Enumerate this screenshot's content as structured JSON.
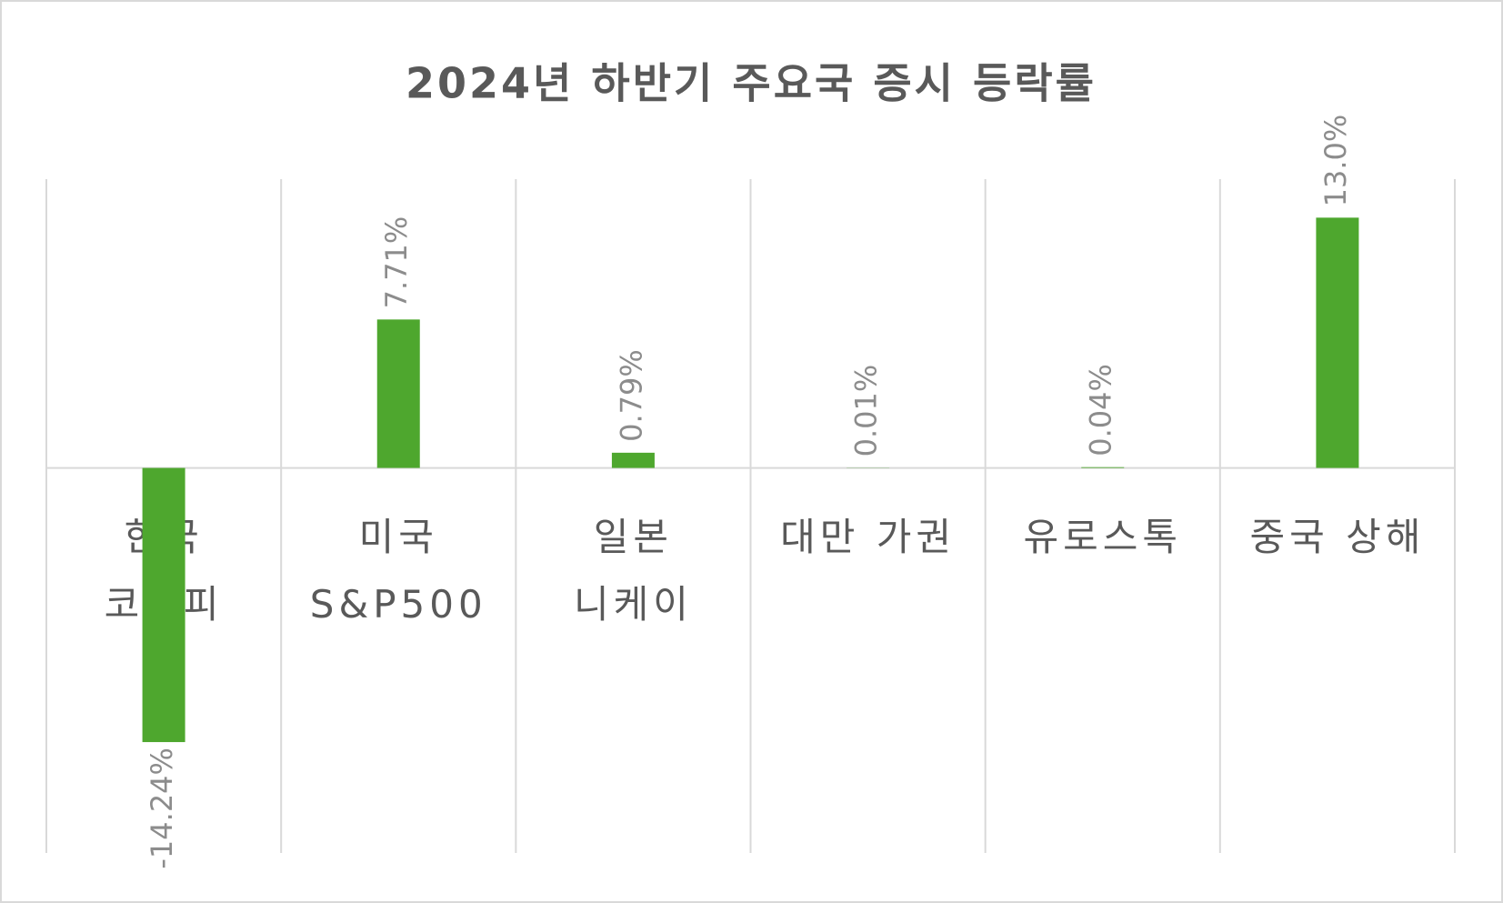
{
  "chart_data": {
    "type": "bar",
    "title": "2024년 하반기 주요국 증시 등락률",
    "categories": [
      "한국\n코스피",
      "미국\nS&P500",
      "일본\n니케이",
      "대만 가권",
      "유로스톡",
      "중국 상해"
    ],
    "values": [
      -14.24,
      7.71,
      0.79,
      0.01,
      0.04,
      13.0
    ],
    "value_labels": [
      "-14.24%",
      "7.71%",
      "0.79%",
      "0.01%",
      "0.04%",
      "13.0%"
    ],
    "color": "#4ea72e",
    "ylim": [
      -20,
      15
    ],
    "grid": true
  }
}
